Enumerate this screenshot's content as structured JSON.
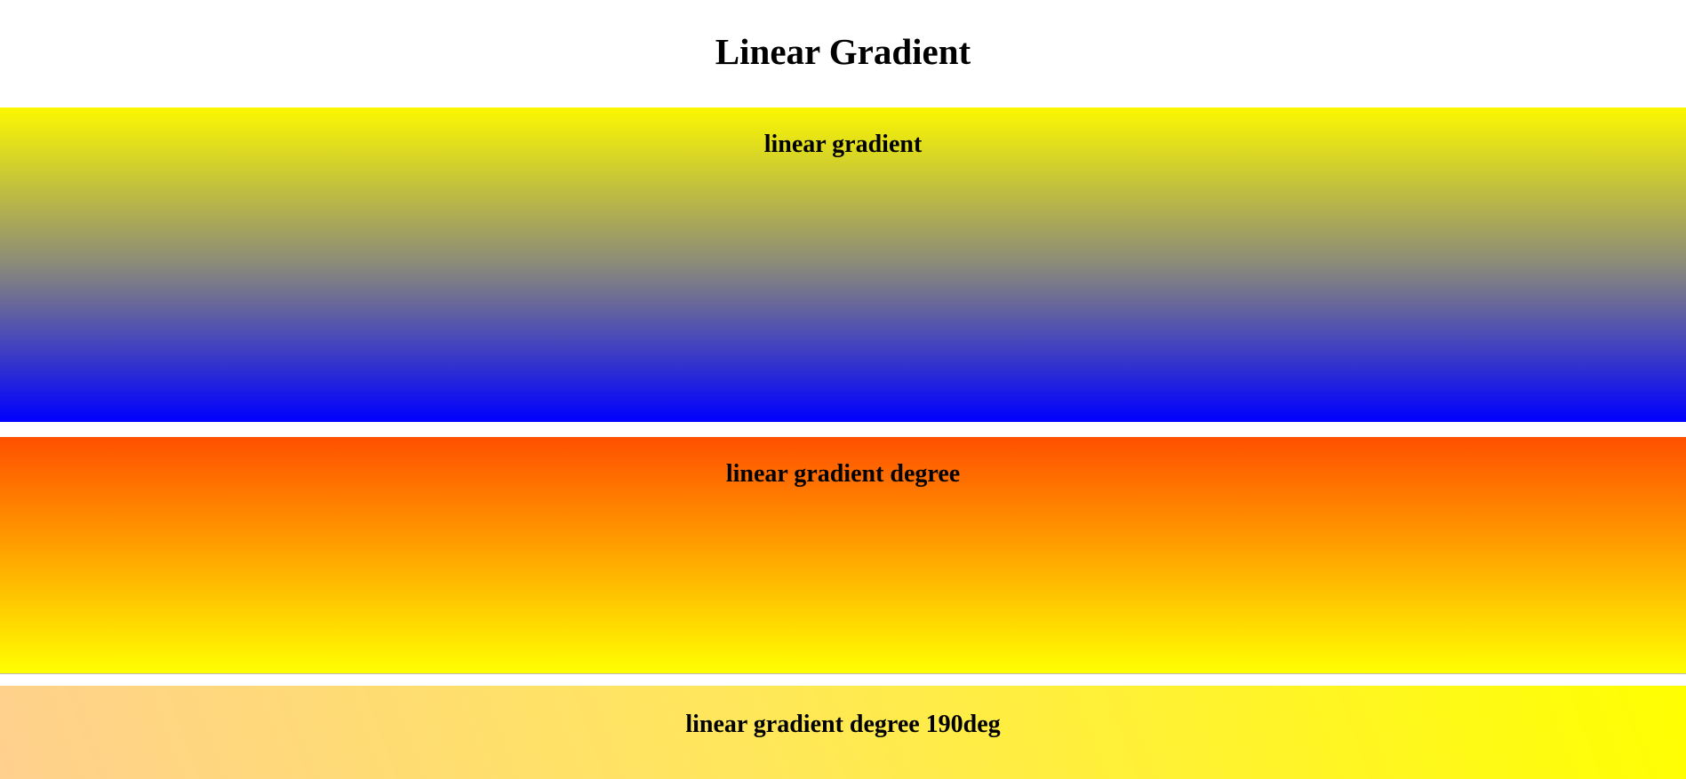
{
  "page": {
    "title": "Linear Gradient"
  },
  "boxes": [
    {
      "label": "linear gradient"
    },
    {
      "label": "linear gradient degree"
    },
    {
      "label": "linear gradient degree 190deg"
    }
  ],
  "colors": {
    "yellow": "#fcf800",
    "blue": "#0000ff",
    "orange_red": "#ff5000",
    "orange": "#ff9400",
    "bright_yellow": "#ffff00",
    "peach": "#ffd08e"
  }
}
